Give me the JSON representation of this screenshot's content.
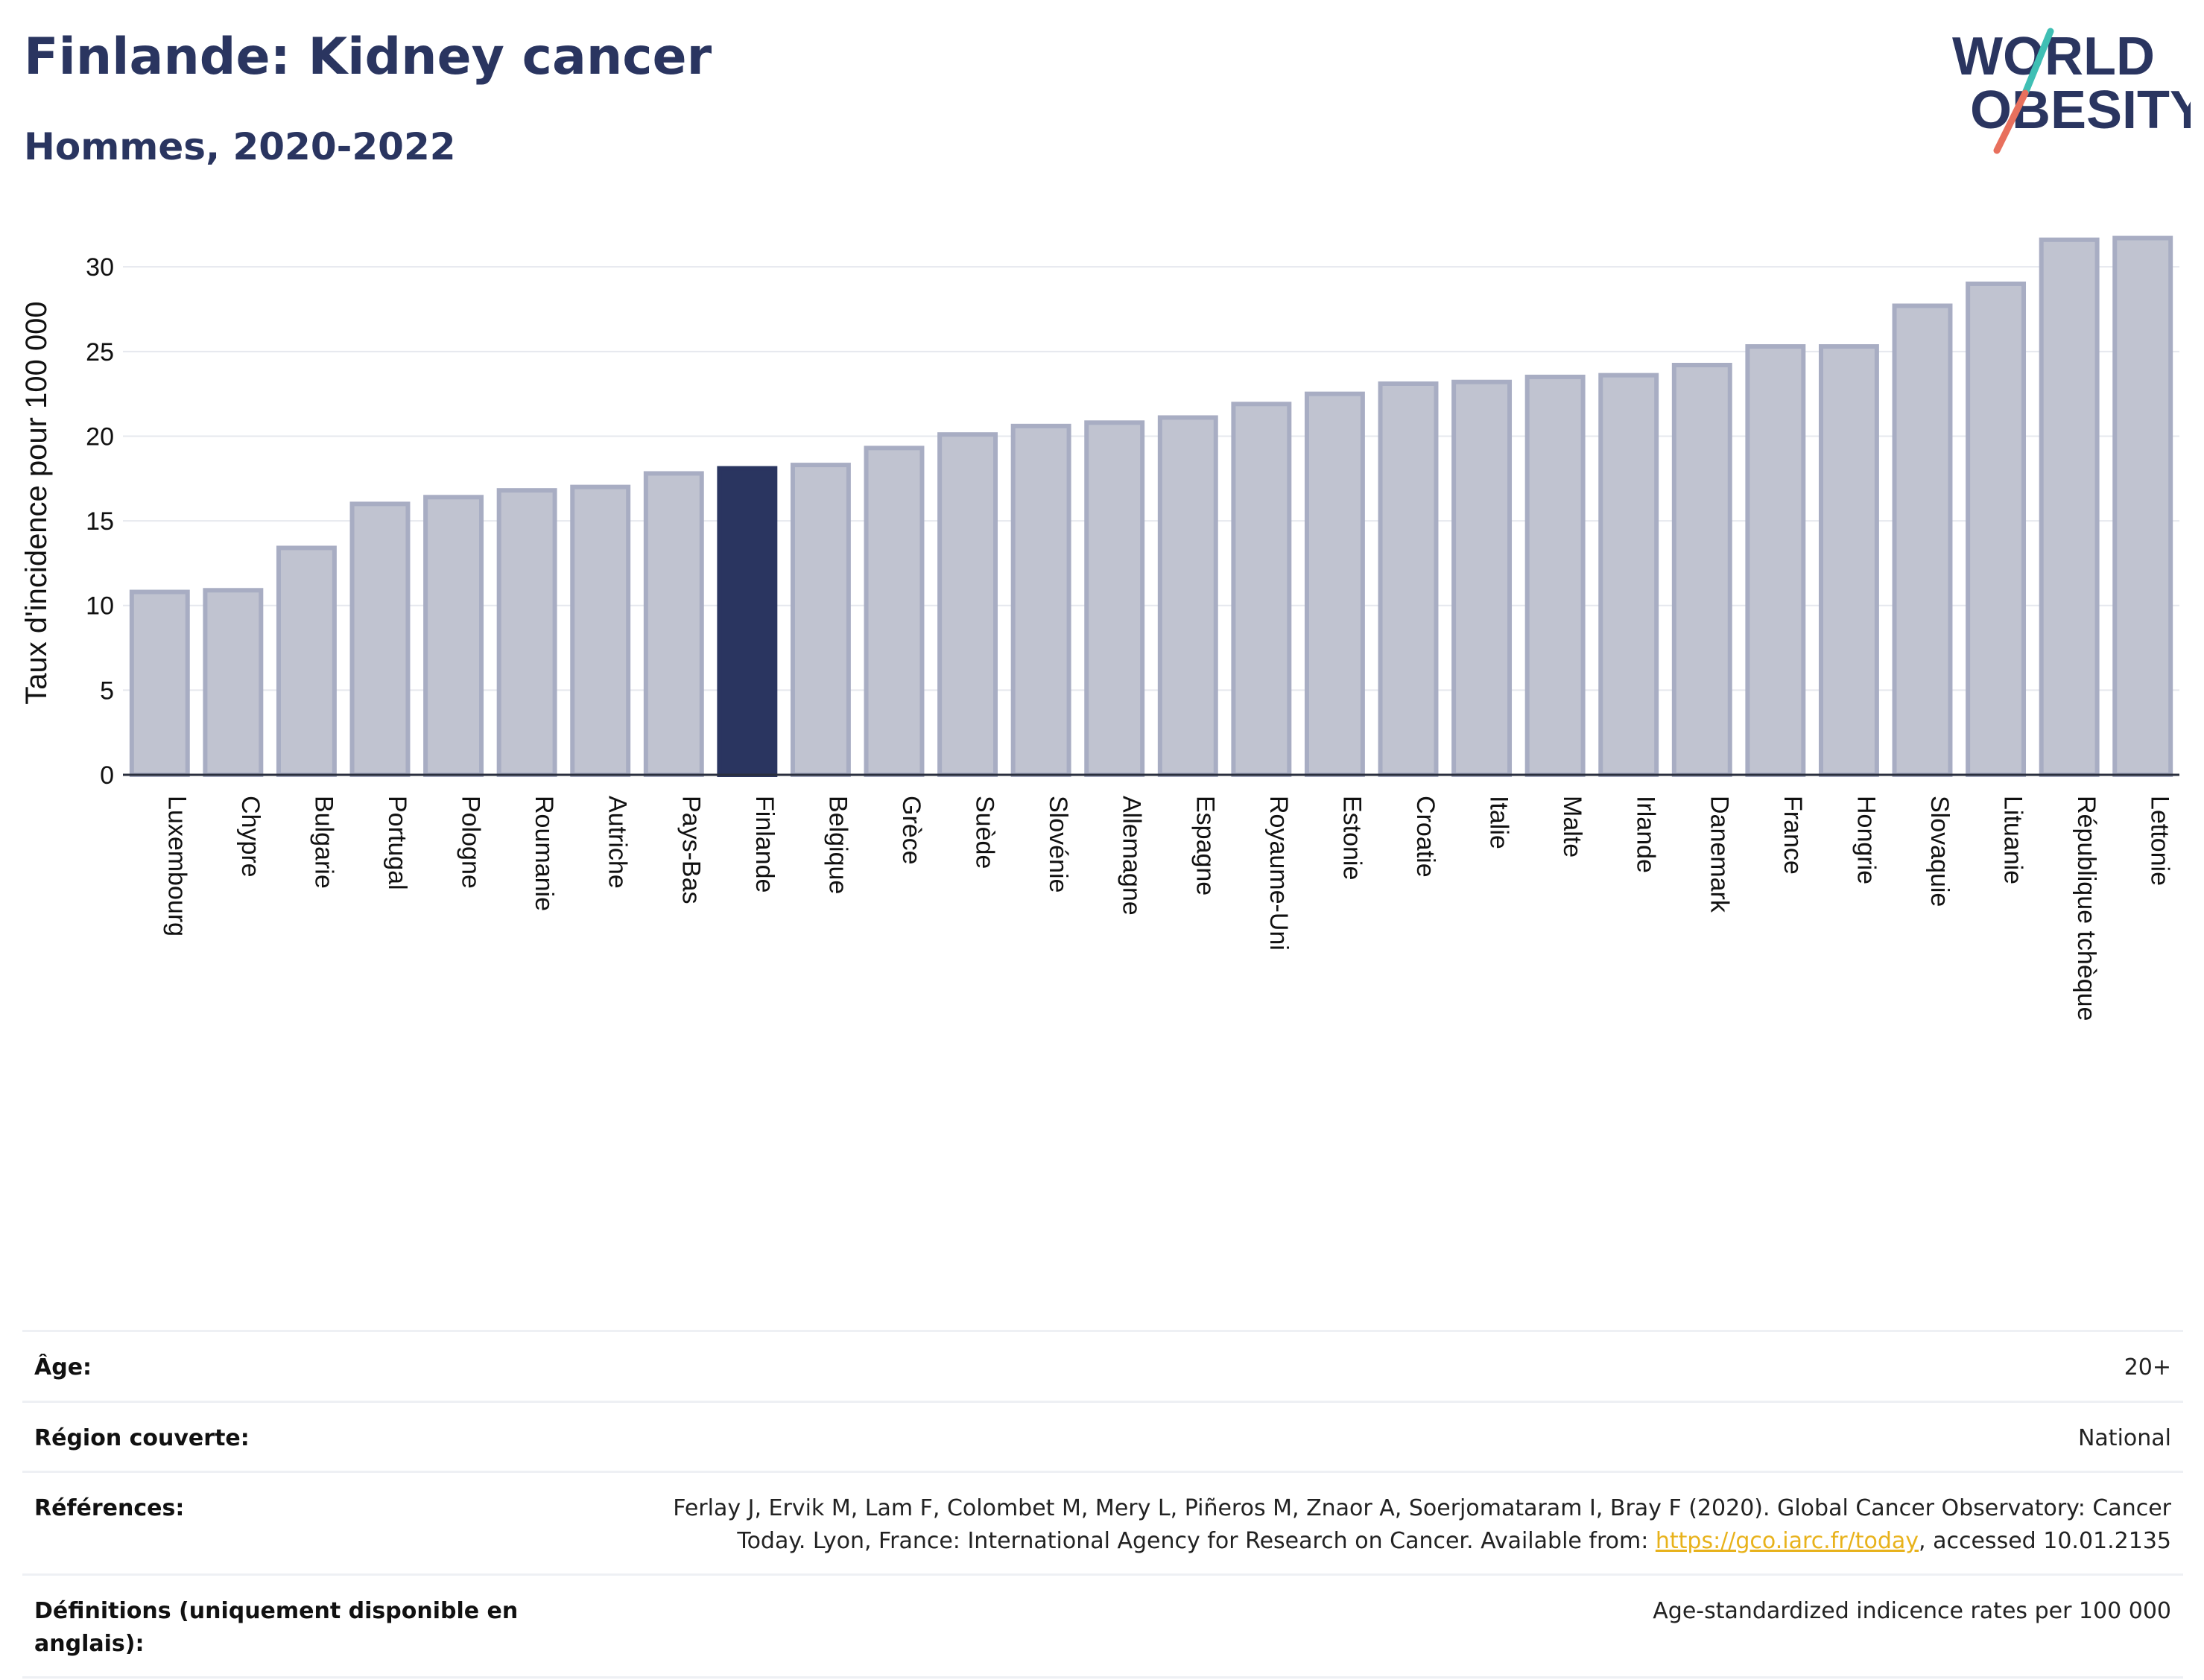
{
  "header": {
    "title": "Finlande: Kidney cancer",
    "subtitle": "Hommes, 2020-2022"
  },
  "logo": {
    "line1": "WORLD",
    "line2": "OBESITY"
  },
  "colors": {
    "highlight": "#2a3560",
    "bar": "#c0c3d0",
    "bar_border": "#a8adc3",
    "grid": "#e6e8ee",
    "text": "#2a3560"
  },
  "chart_data": {
    "type": "bar",
    "ylabel": "Taux d'incidence pour 100 000",
    "ylim": [
      0,
      33
    ],
    "yticks": [
      0,
      5,
      10,
      15,
      20,
      25,
      30
    ],
    "highlight": "Finlande",
    "grid": true,
    "categories": [
      "Luxembourg",
      "Chypre",
      "Bulgarie",
      "Portugal",
      "Pologne",
      "Roumanie",
      "Autriche",
      "Pays-Bas",
      "Finlande",
      "Belgique",
      "Grèce",
      "Suède",
      "Slovénie",
      "Allemagne",
      "Espagne",
      "Royaume-Uni",
      "Estonie",
      "Croatie",
      "Italie",
      "Malte",
      "Irlande",
      "Danemark",
      "France",
      "Hongrie",
      "Slovaquie",
      "Lituanie",
      "République tchèque",
      "Lettonie"
    ],
    "values": [
      10.8,
      10.9,
      13.4,
      16.0,
      16.4,
      16.8,
      17.0,
      17.8,
      18.1,
      18.3,
      19.3,
      20.1,
      20.6,
      20.8,
      21.1,
      21.9,
      22.5,
      23.1,
      23.2,
      23.5,
      23.6,
      24.2,
      25.3,
      25.3,
      27.7,
      29.0,
      31.6,
      31.7
    ]
  },
  "meta": [
    {
      "label": "Âge:",
      "value": "20+"
    },
    {
      "label": "Région couverte:",
      "value": "National"
    },
    {
      "label": "Références:",
      "value_pre": "Ferlay J, Ervik M, Lam F, Colombet M, Mery L, Piñeros M, Znaor A, Soerjomataram I, Bray F (2020). Global Cancer Observatory: Cancer Today. Lyon, France: International Agency for Research on Cancer. Available from: ",
      "link": "https://gco.iarc.fr/today",
      "value_post": ", accessed 10.01.2135"
    },
    {
      "label": "Définitions (uniquement disponible en anglais):",
      "value": "Age-standardized indicence rates per 100 000"
    }
  ]
}
